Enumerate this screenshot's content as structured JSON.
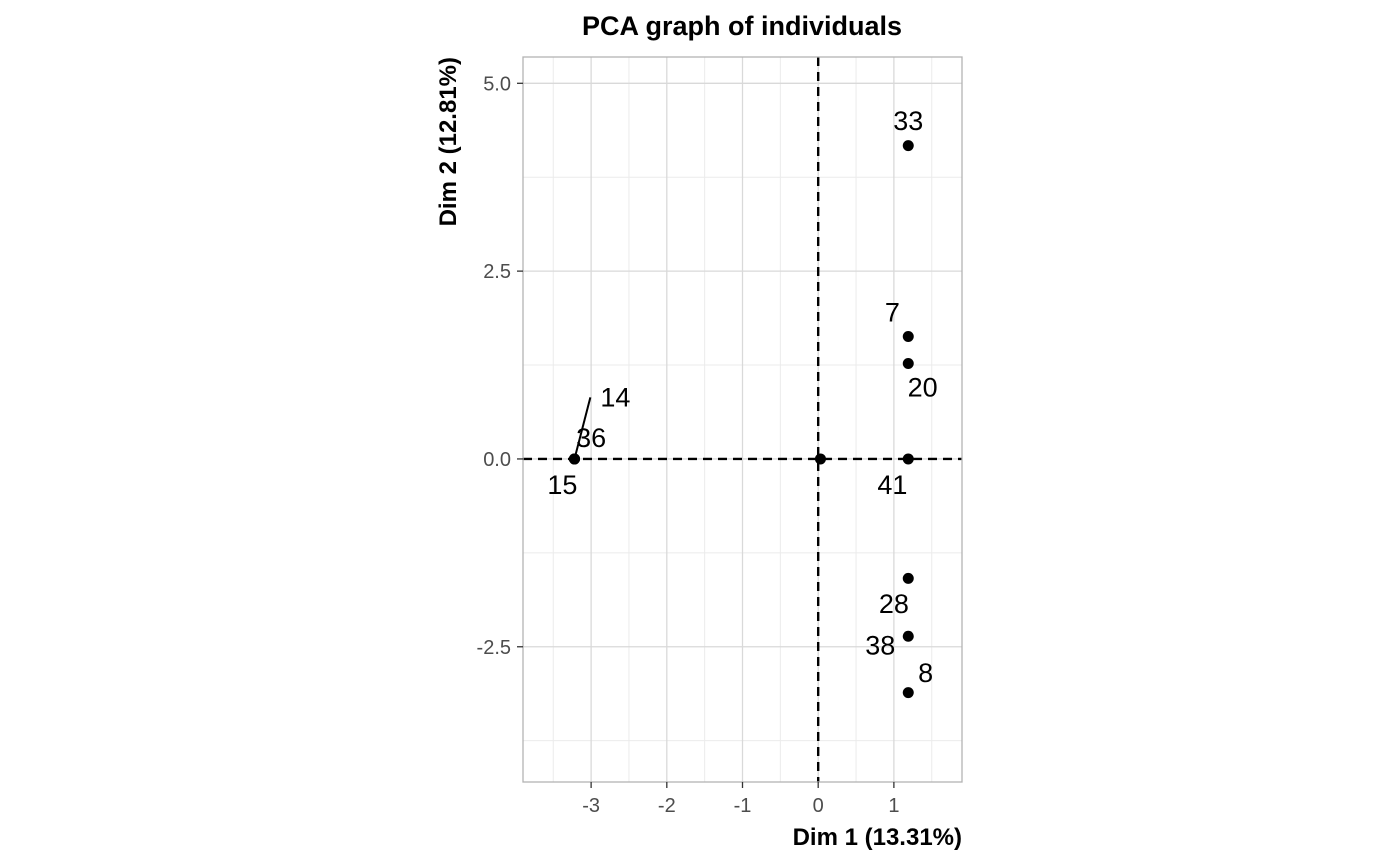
{
  "chart_data": {
    "type": "scatter",
    "title": "PCA graph of individuals",
    "xlabel": "Dim 1 (13.31%)",
    "ylabel": "Dim 2 (12.81%)",
    "xlim": [
      -3.9,
      1.9
    ],
    "ylim": [
      -4.3,
      5.35
    ],
    "x_ticks": [
      -3,
      -2,
      -1,
      0,
      1
    ],
    "x_tick_labels": [
      "-3",
      "-2",
      "-1",
      "0",
      "1"
    ],
    "y_ticks": [
      -2.5,
      0.0,
      2.5,
      5.0
    ],
    "y_tick_labels": [
      "-2.5",
      "0.0",
      "2.5",
      "5.0"
    ],
    "grid": true,
    "reference_lines": {
      "x": 0,
      "y": 0,
      "style": "dashed"
    },
    "points": [
      {
        "label": "33",
        "x": 1.19,
        "y": 4.17
      },
      {
        "label": "7",
        "x": 1.19,
        "y": 1.63
      },
      {
        "label": "20",
        "x": 1.19,
        "y": 1.27
      },
      {
        "label": "41",
        "x": 1.19,
        "y": 0.0
      },
      {
        "label": "28",
        "x": 1.19,
        "y": -1.59
      },
      {
        "label": "38",
        "x": 1.19,
        "y": -2.36
      },
      {
        "label": "8",
        "x": 1.19,
        "y": -3.11
      },
      {
        "label": "14",
        "x": -3.22,
        "y": 0.0
      },
      {
        "label": "36",
        "x": -3.22,
        "y": 0.0
      },
      {
        "label": "15",
        "x": -3.22,
        "y": 0.0
      },
      {
        "label": "",
        "x": 0.03,
        "y": 0.0
      }
    ],
    "text_labels": [
      {
        "text": "33",
        "x": 1.19,
        "y": 4.5
      },
      {
        "text": "7",
        "x": 0.98,
        "y": 1.95
      },
      {
        "text": "20",
        "x": 1.38,
        "y": 0.95
      },
      {
        "text": "14",
        "x": -2.68,
        "y": 0.82
      },
      {
        "text": "36",
        "x": -3.0,
        "y": 0.28
      },
      {
        "text": "15",
        "x": -3.38,
        "y": -0.35
      },
      {
        "text": "41",
        "x": 0.98,
        "y": -0.35
      },
      {
        "text": "28",
        "x": 1.0,
        "y": -1.93
      },
      {
        "text": "38",
        "x": 0.82,
        "y": -2.48
      },
      {
        "text": "8",
        "x": 1.42,
        "y": -2.85
      }
    ],
    "repel_segments": [
      {
        "x1": -3.22,
        "y1": 0.0,
        "x2": -3.01,
        "y2": 0.82
      }
    ],
    "colors": {
      "points": "#000000",
      "grid_major": "#d9d9d9",
      "grid_minor": "#ebebeb",
      "panel_border": "#b3b3b3",
      "tick_text": "#4d4d4d"
    }
  }
}
